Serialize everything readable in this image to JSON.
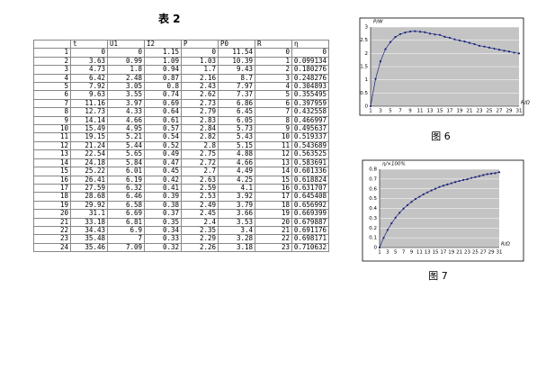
{
  "table_title": "表 2",
  "table": {
    "header": [
      "",
      "t",
      "U1",
      "I2",
      "P",
      "P0",
      "R",
      "η"
    ],
    "rows": [
      [
        1,
        0,
        0,
        1.15,
        0,
        11.54,
        0,
        0
      ],
      [
        2,
        3.63,
        0.99,
        1.09,
        1.03,
        10.39,
        1,
        0.099134
      ],
      [
        3,
        4.73,
        1.8,
        0.94,
        1.7,
        9.43,
        2,
        0.180276
      ],
      [
        4,
        6.42,
        2.48,
        0.87,
        2.16,
        8.7,
        3,
        0.248276
      ],
      [
        5,
        7.92,
        3.05,
        0.8,
        2.43,
        7.97,
        4,
        0.304893
      ],
      [
        6,
        9.63,
        3.55,
        0.74,
        2.62,
        7.37,
        5,
        0.355495
      ],
      [
        7,
        11.16,
        3.97,
        0.69,
        2.73,
        6.86,
        6,
        0.397959
      ],
      [
        8,
        12.73,
        4.33,
        0.64,
        2.79,
        6.45,
        7,
        0.432558
      ],
      [
        9,
        14.14,
        4.66,
        0.61,
        2.83,
        6.05,
        8,
        0.466997
      ],
      [
        10,
        15.49,
        4.95,
        0.57,
        2.84,
        5.73,
        9,
        0.495637
      ],
      [
        11,
        19.15,
        5.21,
        0.54,
        2.82,
        5.43,
        10,
        0.519337
      ],
      [
        12,
        21.24,
        5.44,
        0.52,
        2.8,
        5.15,
        11,
        0.543689
      ],
      [
        13,
        22.54,
        5.65,
        0.49,
        2.75,
        4.88,
        12,
        0.563525
      ],
      [
        14,
        24.18,
        5.84,
        0.47,
        2.72,
        4.66,
        13,
        0.583691
      ],
      [
        15,
        25.22,
        6.01,
        0.45,
        2.7,
        4.49,
        14,
        0.601336
      ],
      [
        16,
        26.41,
        6.19,
        0.42,
        2.63,
        4.25,
        15,
        0.618824
      ],
      [
        17,
        27.59,
        6.32,
        0.41,
        2.59,
        4.1,
        16,
        0.631707
      ],
      [
        18,
        28.68,
        6.46,
        0.39,
        2.53,
        3.92,
        17,
        0.645408
      ],
      [
        19,
        29.92,
        6.58,
        0.38,
        2.49,
        3.79,
        18,
        0.656992
      ],
      [
        20,
        31.1,
        6.69,
        0.37,
        2.45,
        3.66,
        19,
        0.669399
      ],
      [
        21,
        33.18,
        6.81,
        0.35,
        2.4,
        3.53,
        20,
        0.679887
      ],
      [
        22,
        34.43,
        6.9,
        0.34,
        2.35,
        3.4,
        21,
        0.691176
      ],
      [
        23,
        35.48,
        7,
        0.33,
        2.29,
        3.28,
        22,
        0.698171
      ],
      [
        24,
        35.46,
        7.09,
        0.32,
        2.26,
        3.18,
        23,
        0.710632
      ]
    ]
  },
  "figures": [
    {
      "type": "line",
      "caption": "图 6",
      "y_label": "P/W",
      "x_label": "R/Ω",
      "color": "#1a237e",
      "categories": [
        1,
        null,
        3,
        null,
        5,
        null,
        7,
        null,
        9,
        null,
        11,
        null,
        13,
        null,
        15,
        null,
        17,
        null,
        19,
        null,
        21,
        null,
        23,
        null,
        25,
        null,
        27,
        null,
        29,
        null,
        31
      ],
      "values": [
        0,
        1.03,
        1.7,
        2.16,
        2.43,
        2.62,
        2.73,
        2.79,
        2.83,
        2.84,
        2.82,
        2.8,
        2.75,
        2.72,
        2.7,
        2.63,
        2.59,
        2.53,
        2.49,
        2.45,
        2.4,
        2.35,
        2.29,
        2.26,
        2.22,
        2.18,
        2.14,
        2.1,
        2.07,
        2.03,
        2.0
      ],
      "ylim": [
        0,
        3
      ],
      "yticks": [
        0,
        0.5,
        1,
        1.5,
        2,
        2.5,
        3
      ],
      "grid": true
    },
    {
      "type": "line",
      "caption": "图 7",
      "y_label": "η/×100%",
      "x_label": "R/Ω",
      "color": "#1a237e",
      "categories": [
        1,
        null,
        3,
        null,
        5,
        null,
        7,
        null,
        9,
        null,
        11,
        null,
        13,
        null,
        15,
        null,
        17,
        null,
        19,
        null,
        21,
        null,
        23,
        null,
        25,
        null,
        27,
        null,
        29,
        null,
        31
      ],
      "values": [
        0,
        0.099,
        0.18,
        0.248,
        0.305,
        0.355,
        0.398,
        0.433,
        0.467,
        0.496,
        0.519,
        0.544,
        0.564,
        0.584,
        0.601,
        0.619,
        0.632,
        0.645,
        0.657,
        0.669,
        0.68,
        0.691,
        0.698,
        0.711,
        0.72,
        0.73,
        0.74,
        0.75,
        0.755,
        0.76,
        0.77
      ],
      "ylim": [
        0,
        0.8
      ],
      "yticks": [
        0,
        0.1,
        0.2,
        0.3,
        0.4,
        0.5,
        0.6,
        0.7,
        0.8
      ],
      "grid": true
    }
  ]
}
